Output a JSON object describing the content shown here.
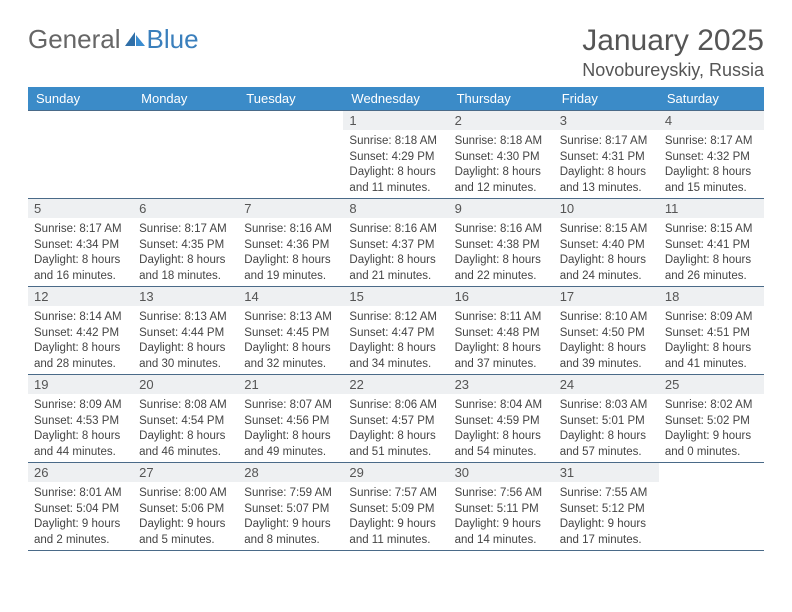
{
  "brand": {
    "general": "General",
    "blue": "Blue"
  },
  "title": "January 2025",
  "location": "Novobureyskiy, Russia",
  "colors": {
    "header_bg": "#3b8bc8",
    "header_text": "#ffffff",
    "cell_border": "#4a6a88",
    "daynum_bg": "#eef0f2",
    "text": "#444444",
    "brand_blue": "#3a7fbc",
    "brand_gray": "#666666",
    "page_bg": "#ffffff"
  },
  "day_headers": [
    "Sunday",
    "Monday",
    "Tuesday",
    "Wednesday",
    "Thursday",
    "Friday",
    "Saturday"
  ],
  "weeks": [
    [
      {
        "n": "",
        "sr": "",
        "ss": "",
        "dl": ""
      },
      {
        "n": "",
        "sr": "",
        "ss": "",
        "dl": ""
      },
      {
        "n": "",
        "sr": "",
        "ss": "",
        "dl": ""
      },
      {
        "n": "1",
        "sr": "Sunrise: 8:18 AM",
        "ss": "Sunset: 4:29 PM",
        "dl": "Daylight: 8 hours and 11 minutes."
      },
      {
        "n": "2",
        "sr": "Sunrise: 8:18 AM",
        "ss": "Sunset: 4:30 PM",
        "dl": "Daylight: 8 hours and 12 minutes."
      },
      {
        "n": "3",
        "sr": "Sunrise: 8:17 AM",
        "ss": "Sunset: 4:31 PM",
        "dl": "Daylight: 8 hours and 13 minutes."
      },
      {
        "n": "4",
        "sr": "Sunrise: 8:17 AM",
        "ss": "Sunset: 4:32 PM",
        "dl": "Daylight: 8 hours and 15 minutes."
      }
    ],
    [
      {
        "n": "5",
        "sr": "Sunrise: 8:17 AM",
        "ss": "Sunset: 4:34 PM",
        "dl": "Daylight: 8 hours and 16 minutes."
      },
      {
        "n": "6",
        "sr": "Sunrise: 8:17 AM",
        "ss": "Sunset: 4:35 PM",
        "dl": "Daylight: 8 hours and 18 minutes."
      },
      {
        "n": "7",
        "sr": "Sunrise: 8:16 AM",
        "ss": "Sunset: 4:36 PM",
        "dl": "Daylight: 8 hours and 19 minutes."
      },
      {
        "n": "8",
        "sr": "Sunrise: 8:16 AM",
        "ss": "Sunset: 4:37 PM",
        "dl": "Daylight: 8 hours and 21 minutes."
      },
      {
        "n": "9",
        "sr": "Sunrise: 8:16 AM",
        "ss": "Sunset: 4:38 PM",
        "dl": "Daylight: 8 hours and 22 minutes."
      },
      {
        "n": "10",
        "sr": "Sunrise: 8:15 AM",
        "ss": "Sunset: 4:40 PM",
        "dl": "Daylight: 8 hours and 24 minutes."
      },
      {
        "n": "11",
        "sr": "Sunrise: 8:15 AM",
        "ss": "Sunset: 4:41 PM",
        "dl": "Daylight: 8 hours and 26 minutes."
      }
    ],
    [
      {
        "n": "12",
        "sr": "Sunrise: 8:14 AM",
        "ss": "Sunset: 4:42 PM",
        "dl": "Daylight: 8 hours and 28 minutes."
      },
      {
        "n": "13",
        "sr": "Sunrise: 8:13 AM",
        "ss": "Sunset: 4:44 PM",
        "dl": "Daylight: 8 hours and 30 minutes."
      },
      {
        "n": "14",
        "sr": "Sunrise: 8:13 AM",
        "ss": "Sunset: 4:45 PM",
        "dl": "Daylight: 8 hours and 32 minutes."
      },
      {
        "n": "15",
        "sr": "Sunrise: 8:12 AM",
        "ss": "Sunset: 4:47 PM",
        "dl": "Daylight: 8 hours and 34 minutes."
      },
      {
        "n": "16",
        "sr": "Sunrise: 8:11 AM",
        "ss": "Sunset: 4:48 PM",
        "dl": "Daylight: 8 hours and 37 minutes."
      },
      {
        "n": "17",
        "sr": "Sunrise: 8:10 AM",
        "ss": "Sunset: 4:50 PM",
        "dl": "Daylight: 8 hours and 39 minutes."
      },
      {
        "n": "18",
        "sr": "Sunrise: 8:09 AM",
        "ss": "Sunset: 4:51 PM",
        "dl": "Daylight: 8 hours and 41 minutes."
      }
    ],
    [
      {
        "n": "19",
        "sr": "Sunrise: 8:09 AM",
        "ss": "Sunset: 4:53 PM",
        "dl": "Daylight: 8 hours and 44 minutes."
      },
      {
        "n": "20",
        "sr": "Sunrise: 8:08 AM",
        "ss": "Sunset: 4:54 PM",
        "dl": "Daylight: 8 hours and 46 minutes."
      },
      {
        "n": "21",
        "sr": "Sunrise: 8:07 AM",
        "ss": "Sunset: 4:56 PM",
        "dl": "Daylight: 8 hours and 49 minutes."
      },
      {
        "n": "22",
        "sr": "Sunrise: 8:06 AM",
        "ss": "Sunset: 4:57 PM",
        "dl": "Daylight: 8 hours and 51 minutes."
      },
      {
        "n": "23",
        "sr": "Sunrise: 8:04 AM",
        "ss": "Sunset: 4:59 PM",
        "dl": "Daylight: 8 hours and 54 minutes."
      },
      {
        "n": "24",
        "sr": "Sunrise: 8:03 AM",
        "ss": "Sunset: 5:01 PM",
        "dl": "Daylight: 8 hours and 57 minutes."
      },
      {
        "n": "25",
        "sr": "Sunrise: 8:02 AM",
        "ss": "Sunset: 5:02 PM",
        "dl": "Daylight: 9 hours and 0 minutes."
      }
    ],
    [
      {
        "n": "26",
        "sr": "Sunrise: 8:01 AM",
        "ss": "Sunset: 5:04 PM",
        "dl": "Daylight: 9 hours and 2 minutes."
      },
      {
        "n": "27",
        "sr": "Sunrise: 8:00 AM",
        "ss": "Sunset: 5:06 PM",
        "dl": "Daylight: 9 hours and 5 minutes."
      },
      {
        "n": "28",
        "sr": "Sunrise: 7:59 AM",
        "ss": "Sunset: 5:07 PM",
        "dl": "Daylight: 9 hours and 8 minutes."
      },
      {
        "n": "29",
        "sr": "Sunrise: 7:57 AM",
        "ss": "Sunset: 5:09 PM",
        "dl": "Daylight: 9 hours and 11 minutes."
      },
      {
        "n": "30",
        "sr": "Sunrise: 7:56 AM",
        "ss": "Sunset: 5:11 PM",
        "dl": "Daylight: 9 hours and 14 minutes."
      },
      {
        "n": "31",
        "sr": "Sunrise: 7:55 AM",
        "ss": "Sunset: 5:12 PM",
        "dl": "Daylight: 9 hours and 17 minutes."
      },
      {
        "n": "",
        "sr": "",
        "ss": "",
        "dl": ""
      }
    ]
  ]
}
